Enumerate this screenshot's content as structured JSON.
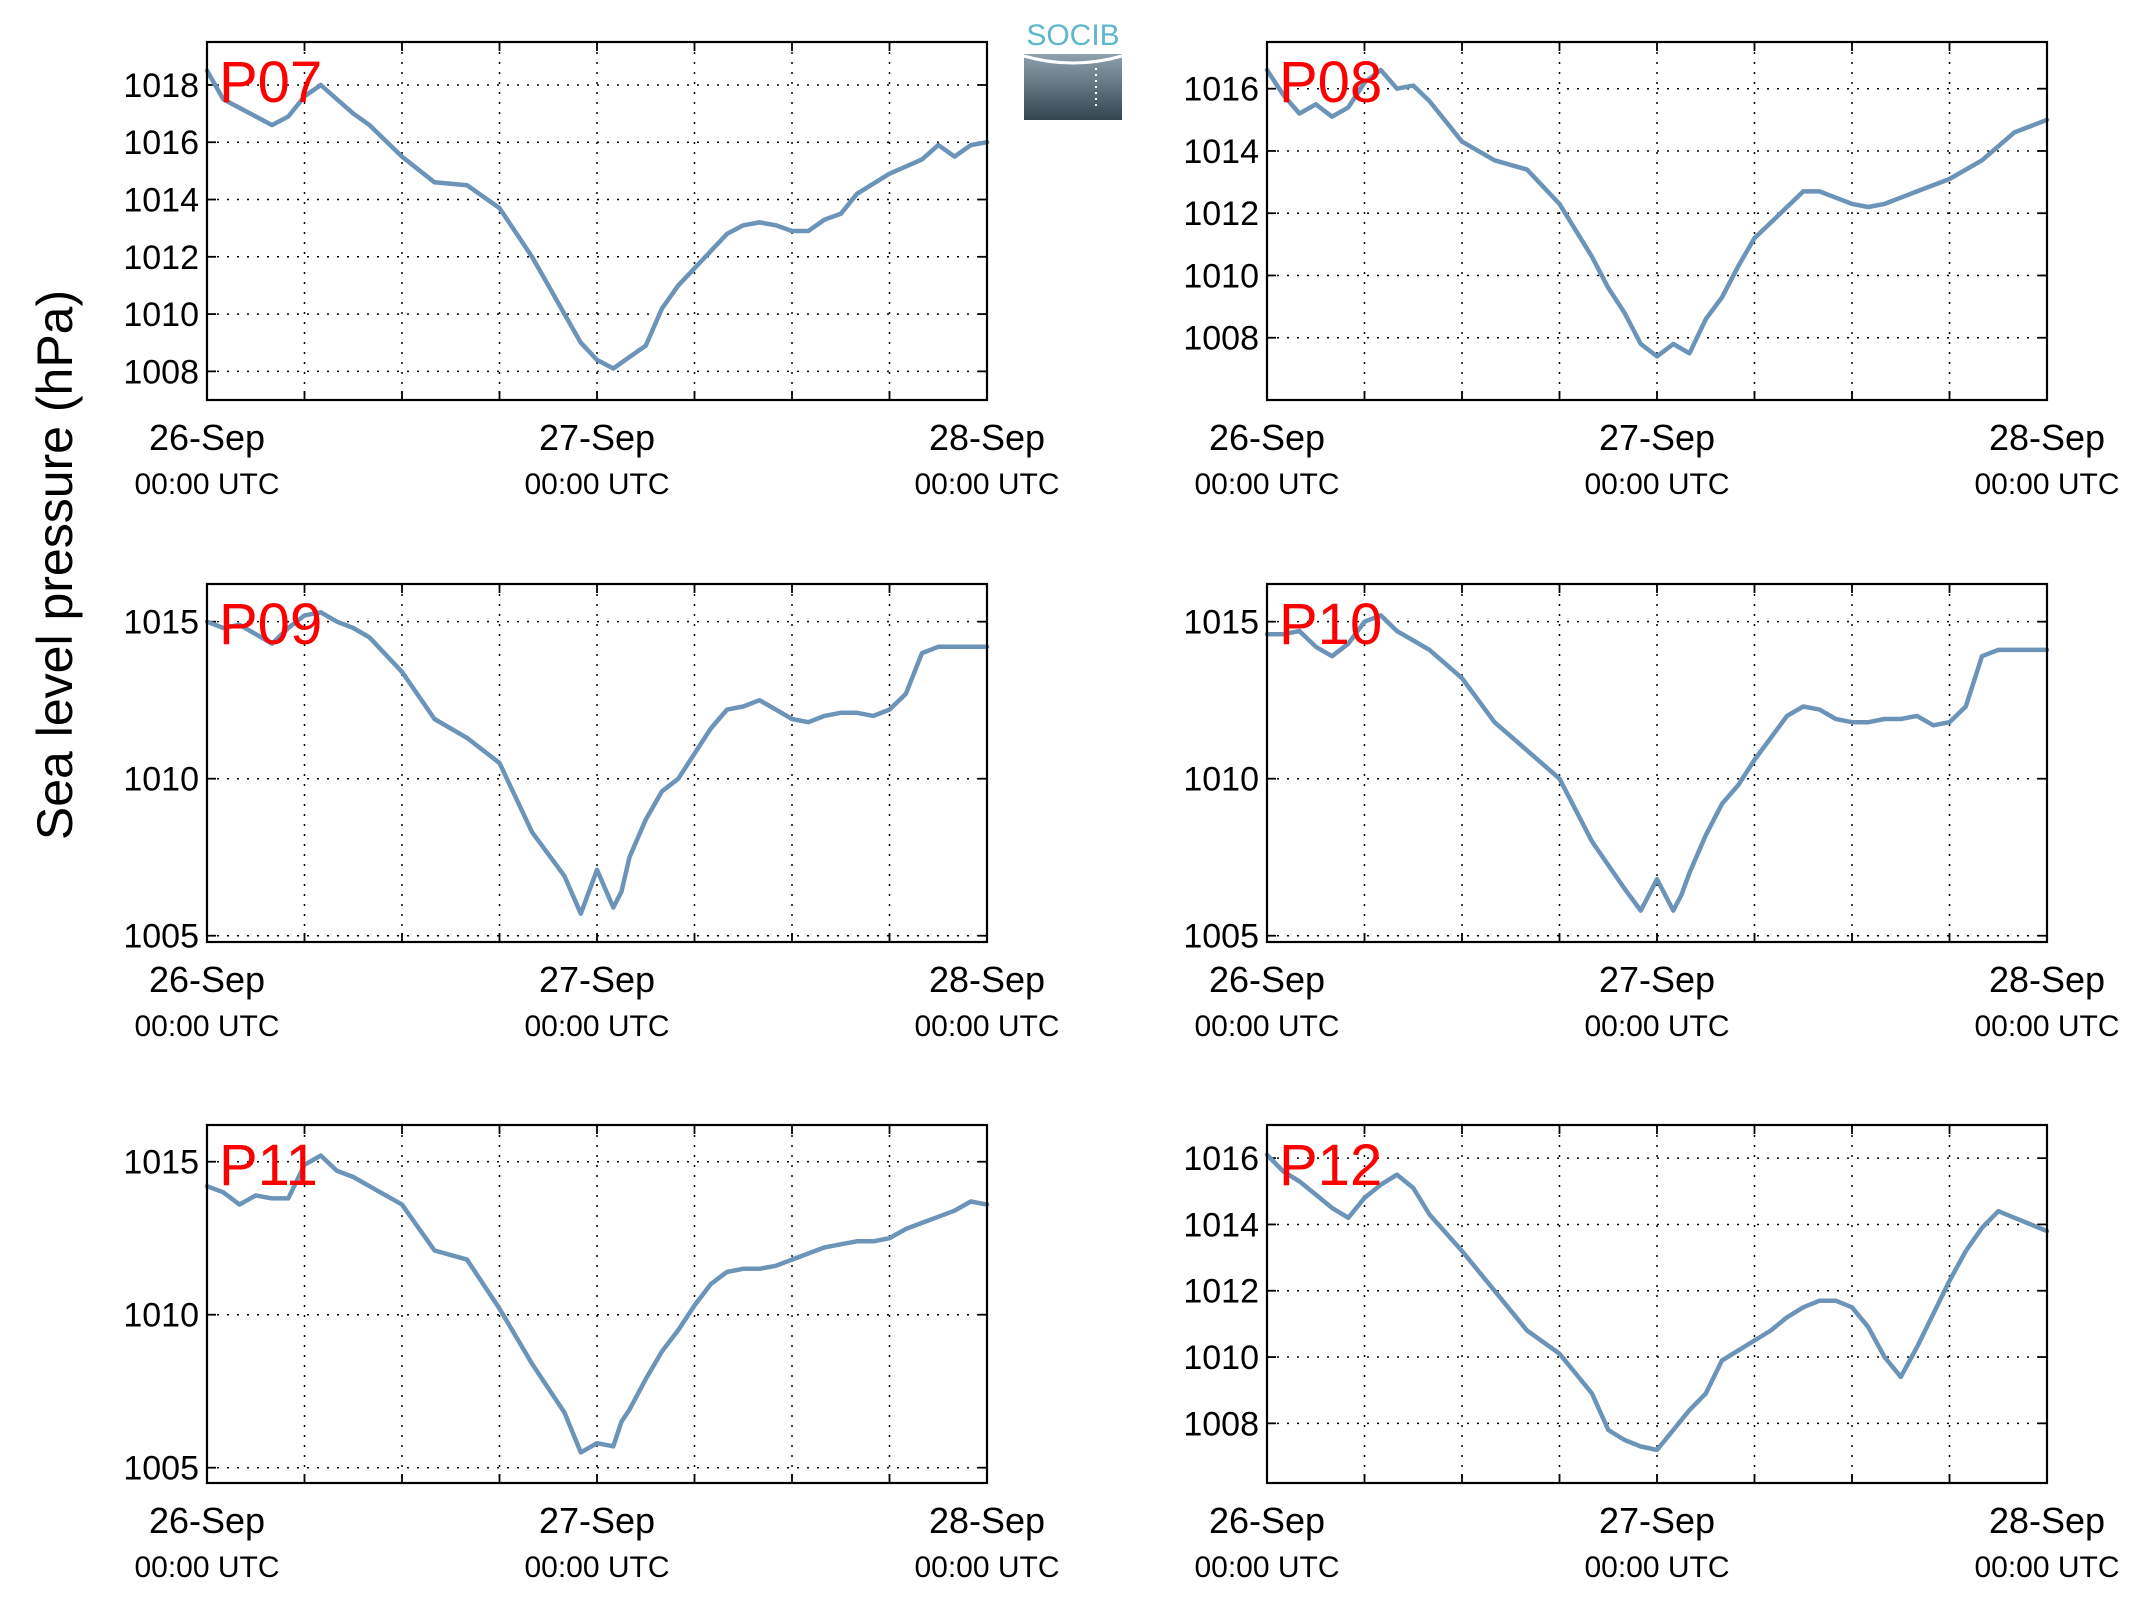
{
  "figure": {
    "ylabel": "Sea level pressure (hPa)",
    "logo_text": "SOCIB",
    "line_color": "#6b94b8",
    "label_color": "#ff0000",
    "x_ticks": [
      {
        "day": "26-Sep",
        "time": "00:00 UTC"
      },
      {
        "day": "27-Sep",
        "time": "00:00 UTC"
      },
      {
        "day": "28-Sep",
        "time": "00:00 UTC"
      }
    ]
  },
  "chart_data": [
    {
      "type": "line",
      "label": "P07",
      "xlim_hours": [
        0,
        48
      ],
      "x_grid_step_hours": 6,
      "ylim": [
        1007,
        1019.5
      ],
      "y_ticks": [
        1008,
        1010,
        1012,
        1014,
        1016,
        1018
      ],
      "grid": "dotted",
      "x_hours": [
        0,
        1,
        2,
        3,
        4,
        5,
        6,
        7,
        8,
        9,
        10,
        12,
        14,
        16,
        18,
        20,
        21,
        22,
        23,
        24,
        25,
        26,
        27,
        28,
        29,
        30,
        31,
        32,
        33,
        34,
        35,
        36,
        37,
        38,
        39,
        40,
        42,
        44,
        45,
        46,
        47,
        48
      ],
      "y": [
        1018.5,
        1017.5,
        1017.2,
        1016.9,
        1016.6,
        1016.9,
        1017.6,
        1018.0,
        1017.5,
        1017.0,
        1016.6,
        1015.5,
        1014.6,
        1014.5,
        1013.7,
        1012.0,
        1011.0,
        1010.0,
        1009.0,
        1008.4,
        1008.1,
        1008.5,
        1008.9,
        1010.2,
        1011.0,
        1011.6,
        1012.2,
        1012.8,
        1013.1,
        1013.2,
        1013.1,
        1012.9,
        1012.9,
        1013.3,
        1013.5,
        1014.2,
        1014.9,
        1015.4,
        1015.9,
        1015.5,
        1015.9,
        1016.0
      ]
    },
    {
      "type": "line",
      "label": "P08",
      "xlim_hours": [
        0,
        48
      ],
      "x_grid_step_hours": 6,
      "ylim": [
        1006,
        1017.5
      ],
      "y_ticks": [
        1008,
        1010,
        1012,
        1014,
        1016
      ],
      "grid": "dotted",
      "x_hours": [
        0,
        1,
        2,
        3,
        4,
        5,
        6,
        7,
        8,
        9,
        10,
        12,
        14,
        16,
        18,
        20,
        21,
        22,
        23,
        24,
        25,
        26,
        27,
        28,
        29,
        30,
        31,
        32,
        33,
        34,
        35,
        36,
        37,
        38,
        40,
        42,
        44,
        46,
        47,
        48
      ],
      "y": [
        1016.6,
        1015.8,
        1015.2,
        1015.5,
        1015.1,
        1015.4,
        1016.2,
        1016.6,
        1016.0,
        1016.1,
        1015.6,
        1014.3,
        1013.7,
        1013.4,
        1012.3,
        1010.6,
        1009.6,
        1008.8,
        1007.8,
        1007.4,
        1007.8,
        1007.5,
        1008.6,
        1009.3,
        1010.3,
        1011.2,
        1011.7,
        1012.2,
        1012.7,
        1012.7,
        1012.5,
        1012.3,
        1012.2,
        1012.3,
        1012.7,
        1013.1,
        1013.7,
        1014.6,
        1014.8,
        1015.0
      ]
    },
    {
      "type": "line",
      "label": "P09",
      "xlim_hours": [
        0,
        48
      ],
      "x_grid_step_hours": 6,
      "ylim": [
        1004.8,
        1016.2
      ],
      "y_ticks": [
        1005,
        1010,
        1015
      ],
      "grid": "dotted",
      "x_hours": [
        0,
        1,
        2,
        3,
        4,
        5,
        6,
        7,
        8,
        9,
        10,
        12,
        14,
        16,
        18,
        20,
        22,
        23,
        24,
        25,
        25.5,
        26,
        27,
        28,
        29,
        30,
        31,
        32,
        33,
        34,
        35,
        36,
        37,
        38,
        39,
        40,
        41,
        42,
        43,
        44,
        45,
        46,
        47,
        48
      ],
      "y": [
        1015.0,
        1014.8,
        1014.9,
        1014.6,
        1014.3,
        1014.8,
        1015.2,
        1015.3,
        1015.0,
        1014.8,
        1014.5,
        1013.4,
        1011.9,
        1011.3,
        1010.5,
        1008.3,
        1006.9,
        1005.7,
        1007.1,
        1005.9,
        1006.4,
        1007.5,
        1008.7,
        1009.6,
        1010.0,
        1010.8,
        1011.6,
        1012.2,
        1012.3,
        1012.5,
        1012.2,
        1011.9,
        1011.8,
        1012.0,
        1012.1,
        1012.1,
        1012.0,
        1012.2,
        1012.7,
        1014.0,
        1014.2,
        1014.2,
        1014.2,
        1014.2
      ]
    },
    {
      "type": "line",
      "label": "P10",
      "xlim_hours": [
        0,
        48
      ],
      "x_grid_step_hours": 6,
      "ylim": [
        1004.8,
        1016.2
      ],
      "y_ticks": [
        1005,
        1010,
        1015
      ],
      "grid": "dotted",
      "x_hours": [
        0,
        1,
        2,
        3,
        4,
        5,
        6,
        7,
        8,
        9,
        10,
        12,
        14,
        16,
        18,
        20,
        22,
        23,
        24,
        25,
        25.5,
        26,
        27,
        28,
        29,
        30,
        31,
        32,
        33,
        34,
        35,
        36,
        37,
        38,
        39,
        40,
        41,
        42,
        43,
        44,
        45,
        46,
        47,
        48
      ],
      "y": [
        1014.6,
        1014.6,
        1014.7,
        1014.2,
        1013.9,
        1014.3,
        1015.0,
        1015.2,
        1014.7,
        1014.4,
        1014.1,
        1013.2,
        1011.8,
        1010.9,
        1010.0,
        1008.0,
        1006.5,
        1005.8,
        1006.8,
        1005.8,
        1006.3,
        1007.0,
        1008.2,
        1009.2,
        1009.8,
        1010.6,
        1011.3,
        1012.0,
        1012.3,
        1012.2,
        1011.9,
        1011.8,
        1011.8,
        1011.9,
        1011.9,
        1012.0,
        1011.7,
        1011.8,
        1012.3,
        1013.9,
        1014.1,
        1014.1,
        1014.1,
        1014.1
      ]
    },
    {
      "type": "line",
      "label": "P11",
      "xlim_hours": [
        0,
        48
      ],
      "x_grid_step_hours": 6,
      "ylim": [
        1004.5,
        1016.2
      ],
      "y_ticks": [
        1005,
        1010,
        1015
      ],
      "grid": "dotted",
      "x_hours": [
        0,
        1,
        2,
        3,
        4,
        5,
        6,
        7,
        8,
        9,
        10,
        12,
        14,
        16,
        18,
        20,
        22,
        23,
        24,
        25,
        25.5,
        26,
        27,
        28,
        29,
        30,
        31,
        32,
        33,
        34,
        35,
        36,
        37,
        38,
        39,
        40,
        41,
        42,
        43,
        44,
        45,
        46,
        47,
        48
      ],
      "y": [
        1014.2,
        1014.0,
        1013.6,
        1013.9,
        1013.8,
        1013.8,
        1014.9,
        1015.2,
        1014.7,
        1014.5,
        1014.2,
        1013.6,
        1012.1,
        1011.8,
        1010.2,
        1008.4,
        1006.8,
        1005.5,
        1005.8,
        1005.7,
        1006.5,
        1006.9,
        1007.9,
        1008.8,
        1009.5,
        1010.3,
        1011.0,
        1011.4,
        1011.5,
        1011.5,
        1011.6,
        1011.8,
        1012.0,
        1012.2,
        1012.3,
        1012.4,
        1012.4,
        1012.5,
        1012.8,
        1013.0,
        1013.2,
        1013.4,
        1013.7,
        1013.6
      ]
    },
    {
      "type": "line",
      "label": "P12",
      "xlim_hours": [
        0,
        48
      ],
      "x_grid_step_hours": 6,
      "ylim": [
        1006.2,
        1017.0
      ],
      "y_ticks": [
        1008,
        1010,
        1012,
        1014,
        1016
      ],
      "grid": "dotted",
      "x_hours": [
        0,
        1,
        2,
        3,
        4,
        5,
        6,
        7,
        8,
        9,
        10,
        12,
        14,
        16,
        18,
        20,
        21,
        22,
        23,
        24,
        25,
        26,
        27,
        28,
        29,
        30,
        31,
        32,
        33,
        34,
        35,
        36,
        37,
        38,
        39,
        40,
        41,
        42,
        43,
        44,
        45,
        46,
        47,
        48
      ],
      "y": [
        1016.1,
        1015.6,
        1015.3,
        1014.9,
        1014.5,
        1014.2,
        1014.8,
        1015.2,
        1015.5,
        1015.1,
        1014.3,
        1013.2,
        1012.0,
        1010.8,
        1010.1,
        1008.9,
        1007.8,
        1007.5,
        1007.3,
        1007.2,
        1007.8,
        1008.4,
        1008.9,
        1009.9,
        1010.2,
        1010.5,
        1010.8,
        1011.2,
        1011.5,
        1011.7,
        1011.7,
        1011.5,
        1010.9,
        1010.0,
        1009.4,
        1010.3,
        1011.3,
        1012.3,
        1013.2,
        1013.9,
        1014.4,
        1014.2,
        1014.0,
        1013.8
      ]
    }
  ]
}
